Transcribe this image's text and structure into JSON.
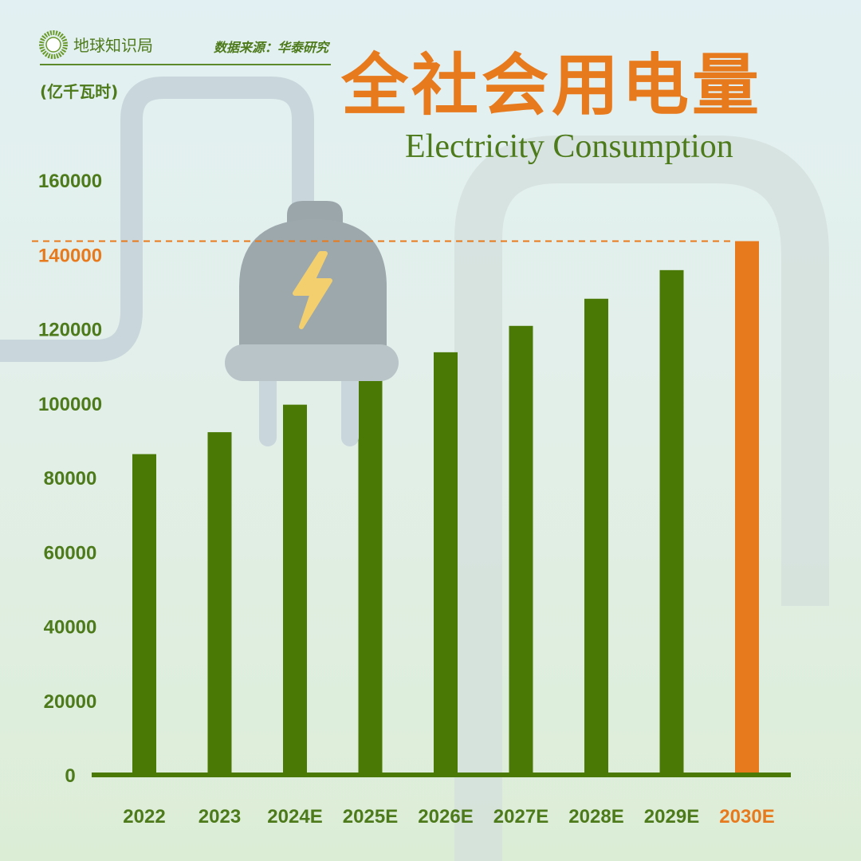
{
  "header": {
    "brand": "地球知识局",
    "source": "数据来源：华泰研究",
    "unit": "(亿千瓦时)",
    "title": "全社会用电量",
    "subtitle": "Electricity Consumption",
    "watermark": "地球知识局"
  },
  "colors": {
    "bar": "#4a7a05",
    "highlight": "#e87a1e",
    "axis_text": "#4d7a1a"
  },
  "chart_data": {
    "type": "bar",
    "title": "全社会用电量",
    "subtitle": "Electricity Consumption",
    "ylabel": "(亿千瓦时)",
    "xlabel": "",
    "categories": [
      "2022",
      "2023",
      "2024E",
      "2025E",
      "2026E",
      "2027E",
      "2028E",
      "2029E",
      "2030E"
    ],
    "values": [
      86300,
      92200,
      99600,
      106500,
      113700,
      120800,
      128100,
      135800,
      143600
    ],
    "highlight_index": 8,
    "highlight_tick": "140000",
    "ylim": [
      0,
      160000
    ],
    "yticks": [
      "0",
      "20000",
      "40000",
      "60000",
      "80000",
      "100000",
      "120000",
      "140000",
      "160000"
    ],
    "grid": false,
    "reference_line": "dashed line at 2030E value"
  }
}
